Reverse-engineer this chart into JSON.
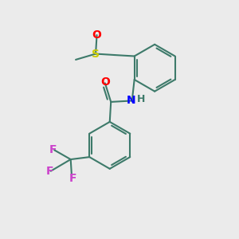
{
  "background_color": "#ebebeb",
  "bond_color": "#3d7a6a",
  "atom_colors": {
    "O": "#ff0000",
    "S": "#cccc00",
    "N": "#0000ff",
    "H": "#3d7a6a",
    "F": "#cc44cc",
    "C": "#3d7a6a"
  },
  "lw": 1.5,
  "figsize": [
    3.0,
    3.0
  ],
  "dpi": 100
}
